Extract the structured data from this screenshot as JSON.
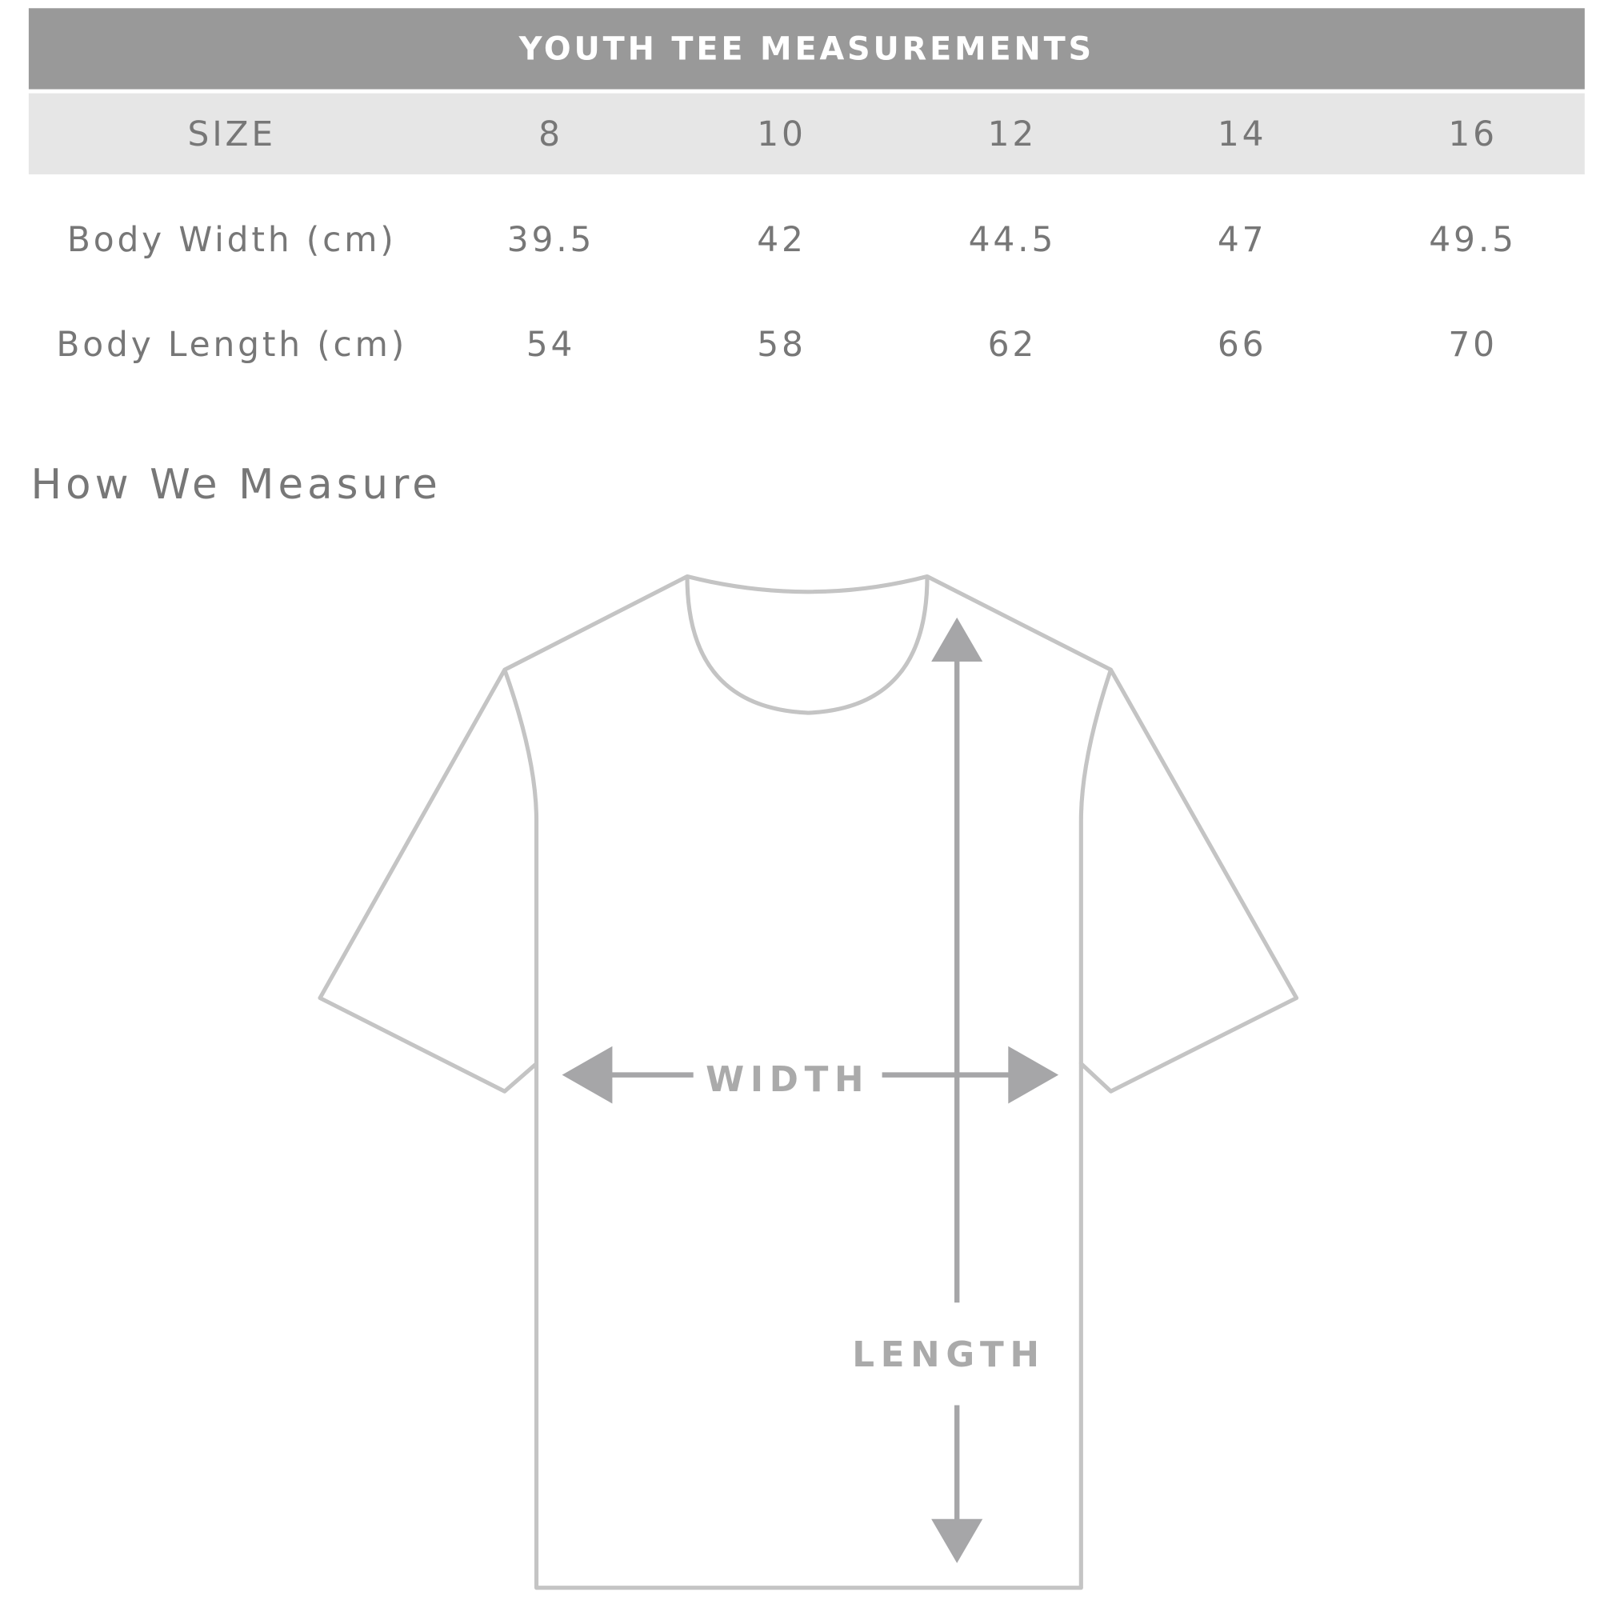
{
  "title": "YOUTH TEE MEASUREMENTS",
  "table": {
    "header": [
      "SIZE",
      "8",
      "10",
      "12",
      "14",
      "16"
    ],
    "rows": [
      [
        "Body Width (cm)",
        "39.5",
        "42",
        "44.5",
        "47",
        "49.5"
      ],
      [
        "Body Length (cm)",
        "54",
        "58",
        "62",
        "66",
        "70"
      ]
    ]
  },
  "how_heading": "How We Measure",
  "diagram": {
    "width_label": "WIDTH",
    "length_label": "LENGTH",
    "icon": "t-shirt-outline"
  },
  "colors": {
    "title_bg": "#999999",
    "header_bg": "#e6e6e6",
    "outline": "#c4c4c4",
    "arrow": "#a6a6a8"
  }
}
